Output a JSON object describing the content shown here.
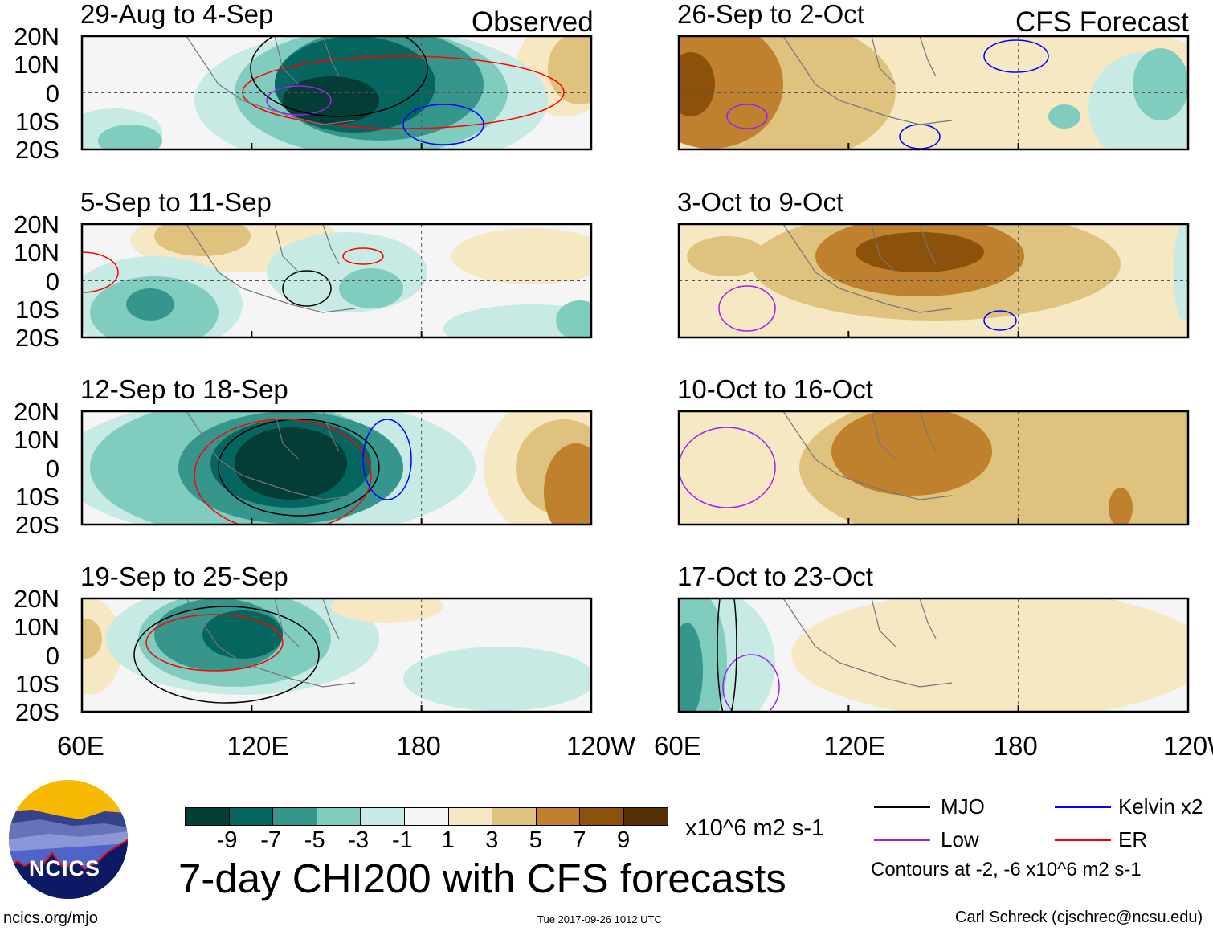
{
  "header": {
    "left_label": "Observed",
    "right_label": "CFS Forecast"
  },
  "panels": {
    "observed": [
      "29-Aug to 4-Sep",
      "5-Sep to 11-Sep",
      "12-Sep to 18-Sep",
      "19-Sep to 25-Sep"
    ],
    "forecast": [
      "26-Sep to 2-Oct",
      "3-Oct to 9-Oct",
      "10-Oct to 16-Oct",
      "17-Oct to 23-Oct"
    ]
  },
  "lat_labels": [
    "20N",
    "10N",
    "0",
    "10S",
    "20S"
  ],
  "lon_labels": [
    "60E",
    "120E",
    "180",
    "120W"
  ],
  "colorbar": {
    "ticks": [
      "-9",
      "-7",
      "-5",
      "-3",
      "-1",
      "1",
      "3",
      "5",
      "7",
      "9"
    ],
    "colors": [
      "#033d36",
      "#05665f",
      "#36968c",
      "#80cdc0",
      "#c7eae4",
      "#f5f5f5",
      "#f6e8c3",
      "#dfc27e",
      "#bf812d",
      "#8c510a",
      "#543006"
    ],
    "units": "x10^6 m2 s-1"
  },
  "title": "7-day CHI200 with CFS forecasts",
  "legend": {
    "items": [
      {
        "label": "MJO",
        "color": "#000000"
      },
      {
        "label": "Kelvin x2",
        "color": "#0000ff"
      },
      {
        "label": "Low",
        "color": "#a020f0"
      },
      {
        "label": "ER",
        "color": "#ff0000"
      }
    ],
    "note": "Contours at -2, -6 x10^6 m2 s-1"
  },
  "logo": {
    "text": "NCICS"
  },
  "footer": {
    "url": "ncics.org/mjo",
    "timestamp": "Tue 2017-09-26 1012 UTC",
    "author": "Carl Schreck (cjschrec@ncsu.edu)"
  }
}
